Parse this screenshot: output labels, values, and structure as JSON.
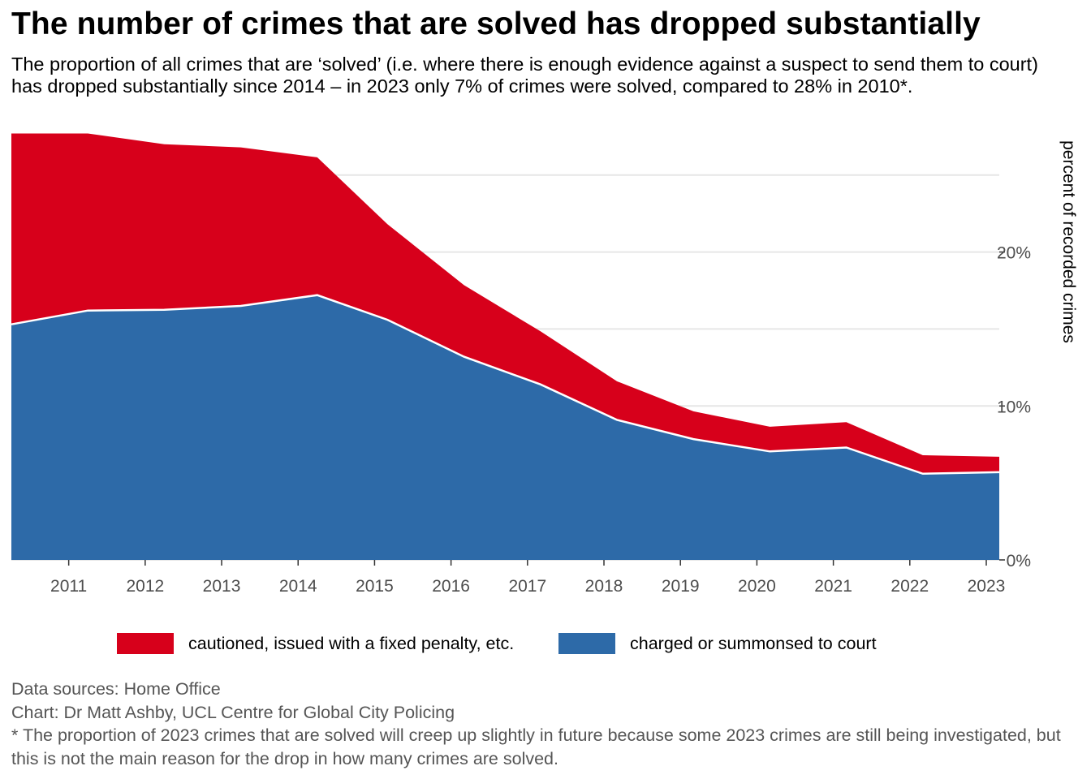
{
  "title": "The number of crimes that are solved has dropped substantially",
  "subtitle": "The proportion of all crimes that are ‘solved’ (i.e. where there is enough evidence against a suspect to send them to court) has dropped substantially since 2014 – in 2023 only 7% of crimes were solved, compared to 28% in 2010*.",
  "caption": {
    "sources": "Data sources: Home Office",
    "credit": "Chart: Dr Matt Ashby, UCL Centre for Global City Policing",
    "note": "* The proportion of 2023 crimes that are solved will creep up slightly in future because some 2023 crimes are still being investigated, but this is not the main reason for the drop in how many crimes are solved."
  },
  "legend": {
    "cautioned": "cautioned, issued with a fixed penalty, etc.",
    "charged": "charged or summonsed to court"
  },
  "colors": {
    "cautioned": "#d7001b",
    "charged": "#2d6aa8",
    "grid": "#e6e6e6",
    "axis_text": "#4d4d4d"
  },
  "chart_data": {
    "type": "area",
    "stacked": true,
    "x": [
      2010.25,
      2011.25,
      2012.25,
      2013.25,
      2014.25,
      2015.17,
      2016.17,
      2017.17,
      2018.17,
      2019.17,
      2020.17,
      2021.17,
      2022.17,
      2023.17
    ],
    "series": [
      {
        "name": "charged or summonsed to court",
        "values": [
          15.3,
          16.2,
          16.25,
          16.5,
          17.2,
          15.6,
          13.2,
          11.4,
          9.1,
          7.85,
          7.05,
          7.3,
          5.6,
          5.7
        ]
      },
      {
        "name": "cautioned, issued with a fixed penalty, etc.",
        "values": [
          12.4,
          11.5,
          10.75,
          10.3,
          8.95,
          6.2,
          4.65,
          3.45,
          2.5,
          1.8,
          1.6,
          1.65,
          1.2,
          1.0
        ]
      }
    ],
    "x_ticks": [
      2011,
      2012,
      2013,
      2014,
      2015,
      2016,
      2017,
      2018,
      2019,
      2020,
      2021,
      2022,
      2023
    ],
    "x_tick_labels": [
      "2011",
      "2012",
      "2013",
      "2014",
      "2015",
      "2016",
      "2017",
      "2018",
      "2019",
      "2020",
      "2021",
      "2022",
      "2023"
    ],
    "xlim": [
      2010.25,
      2023.17
    ],
    "y_ticks": [
      0,
      10,
      20
    ],
    "y_tick_labels": [
      "0%",
      "10%",
      "20%"
    ],
    "y_minor_grid": [
      5,
      15,
      25
    ],
    "ylim": [
      0,
      27.7
    ],
    "ylabel": "percent of recorded crimes",
    "xlabel": "",
    "y_axis_position": "right",
    "legend_position": "bottom",
    "grid": true
  }
}
